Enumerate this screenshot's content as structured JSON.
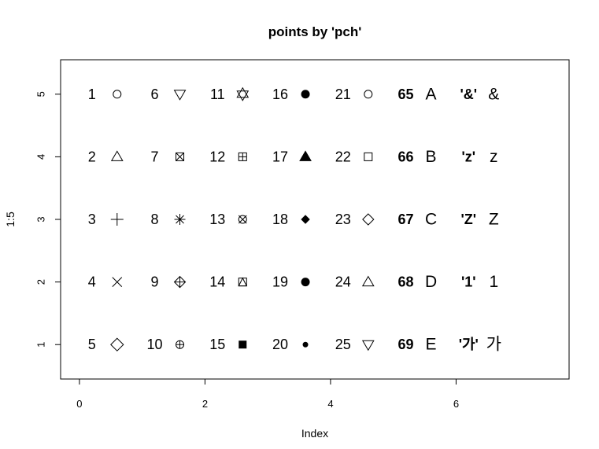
{
  "chart_data": {
    "type": "scatter",
    "title": "points by 'pch'",
    "xlabel": "Index",
    "ylabel": "1:5",
    "xlim": [
      -0.3,
      7.8
    ],
    "ylim": [
      0.45,
      5.55
    ],
    "xticks": [
      {
        "value": 0,
        "label": "0"
      },
      {
        "value": 2,
        "label": "2"
      },
      {
        "value": 4,
        "label": "4"
      },
      {
        "value": 6,
        "label": "6"
      }
    ],
    "yticks": [
      {
        "value": 1,
        "label": "1"
      },
      {
        "value": 2,
        "label": "2"
      },
      {
        "value": 3,
        "label": "3"
      },
      {
        "value": 4,
        "label": "4"
      },
      {
        "value": 5,
        "label": "5"
      }
    ],
    "grid": false,
    "legend": "none",
    "points": [
      {
        "x": 0.6,
        "y": 5,
        "label": "1",
        "labelStyle": "normal",
        "symbol": "pch1"
      },
      {
        "x": 1.6,
        "y": 5,
        "label": "6",
        "labelStyle": "normal",
        "symbol": "pch6"
      },
      {
        "x": 2.6,
        "y": 5,
        "label": "11",
        "labelStyle": "normal",
        "symbol": "pch11"
      },
      {
        "x": 3.6,
        "y": 5,
        "label": "16",
        "labelStyle": "normal",
        "symbol": "pch16"
      },
      {
        "x": 4.6,
        "y": 5,
        "label": "21",
        "labelStyle": "normal",
        "symbol": "pch21"
      },
      {
        "x": 5.6,
        "y": 5,
        "label": "65",
        "labelStyle": "bold",
        "symbol": "char",
        "char": "A"
      },
      {
        "x": 6.6,
        "y": 5,
        "label": "'&'",
        "labelStyle": "bold",
        "symbol": "char",
        "char": "&"
      },
      {
        "x": 0.6,
        "y": 4,
        "label": "2",
        "labelStyle": "normal",
        "symbol": "pch2"
      },
      {
        "x": 1.6,
        "y": 4,
        "label": "7",
        "labelStyle": "normal",
        "symbol": "pch7"
      },
      {
        "x": 2.6,
        "y": 4,
        "label": "12",
        "labelStyle": "normal",
        "symbol": "pch12"
      },
      {
        "x": 3.6,
        "y": 4,
        "label": "17",
        "labelStyle": "normal",
        "symbol": "pch17"
      },
      {
        "x": 4.6,
        "y": 4,
        "label": "22",
        "labelStyle": "normal",
        "symbol": "pch22"
      },
      {
        "x": 5.6,
        "y": 4,
        "label": "66",
        "labelStyle": "bold",
        "symbol": "char",
        "char": "B"
      },
      {
        "x": 6.6,
        "y": 4,
        "label": "'z'",
        "labelStyle": "bold",
        "symbol": "char",
        "char": "z"
      },
      {
        "x": 0.6,
        "y": 3,
        "label": "3",
        "labelStyle": "normal",
        "symbol": "pch3"
      },
      {
        "x": 1.6,
        "y": 3,
        "label": "8",
        "labelStyle": "normal",
        "symbol": "pch8"
      },
      {
        "x": 2.6,
        "y": 3,
        "label": "13",
        "labelStyle": "normal",
        "symbol": "pch13"
      },
      {
        "x": 3.6,
        "y": 3,
        "label": "18",
        "labelStyle": "normal",
        "symbol": "pch18"
      },
      {
        "x": 4.6,
        "y": 3,
        "label": "23",
        "labelStyle": "normal",
        "symbol": "pch23"
      },
      {
        "x": 5.6,
        "y": 3,
        "label": "67",
        "labelStyle": "bold",
        "symbol": "char",
        "char": "C"
      },
      {
        "x": 6.6,
        "y": 3,
        "label": "'Z'",
        "labelStyle": "bold",
        "symbol": "char",
        "char": "Z"
      },
      {
        "x": 0.6,
        "y": 2,
        "label": "4",
        "labelStyle": "normal",
        "symbol": "pch4"
      },
      {
        "x": 1.6,
        "y": 2,
        "label": "9",
        "labelStyle": "normal",
        "symbol": "pch9"
      },
      {
        "x": 2.6,
        "y": 2,
        "label": "14",
        "labelStyle": "normal",
        "symbol": "pch14"
      },
      {
        "x": 3.6,
        "y": 2,
        "label": "19",
        "labelStyle": "normal",
        "symbol": "pch19"
      },
      {
        "x": 4.6,
        "y": 2,
        "label": "24",
        "labelStyle": "normal",
        "symbol": "pch24"
      },
      {
        "x": 5.6,
        "y": 2,
        "label": "68",
        "labelStyle": "bold",
        "symbol": "char",
        "char": "D"
      },
      {
        "x": 6.6,
        "y": 2,
        "label": "'1'",
        "labelStyle": "bold",
        "symbol": "char",
        "char": "1"
      },
      {
        "x": 0.6,
        "y": 1,
        "label": "5",
        "labelStyle": "normal",
        "symbol": "pch5"
      },
      {
        "x": 1.6,
        "y": 1,
        "label": "10",
        "labelStyle": "normal",
        "symbol": "pch10"
      },
      {
        "x": 2.6,
        "y": 1,
        "label": "15",
        "labelStyle": "normal",
        "symbol": "pch15"
      },
      {
        "x": 3.6,
        "y": 1,
        "label": "20",
        "labelStyle": "normal",
        "symbol": "pch20"
      },
      {
        "x": 4.6,
        "y": 1,
        "label": "25",
        "labelStyle": "normal",
        "symbol": "pch25"
      },
      {
        "x": 5.6,
        "y": 1,
        "label": "69",
        "labelStyle": "bold",
        "symbol": "char",
        "char": "E"
      },
      {
        "x": 6.6,
        "y": 1,
        "label": "'가'",
        "labelStyle": "bold",
        "symbol": "char",
        "char": "가"
      }
    ]
  }
}
